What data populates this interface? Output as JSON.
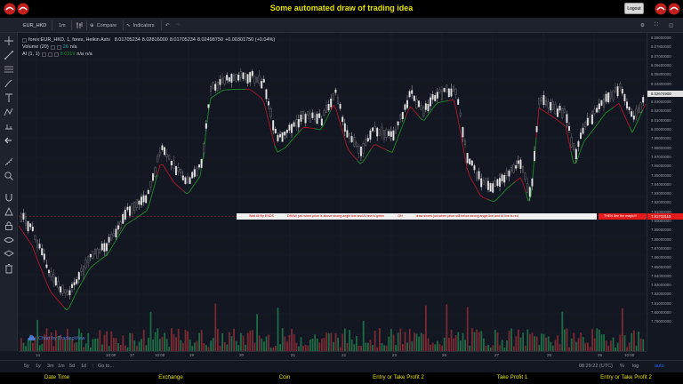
{
  "banner": {
    "title": "Some automated draw of trading idea",
    "logout_label": "Logout"
  },
  "toolbar": {
    "symbol": "EUR_HKD",
    "interval": "1m",
    "compare_label": "Compare",
    "indicators_label": "Indicators"
  },
  "legend": {
    "main_title": "forex:EUR_HKD, 1, forex, Heikin Ashi",
    "ohlc": [
      "8.01705234",
      "8.02816000",
      "8.01705234",
      "8.02498750",
      "+0.00301750 (+0.04%)"
    ],
    "volume_label": "Volume (20)",
    "volume_values": [
      "26",
      "n/a"
    ],
    "ai_label": "AI (1, 1)",
    "ai_values": [
      "8.0319",
      "n/a",
      "n/a"
    ]
  },
  "price_axis": {
    "labels": [
      "8.08000000",
      "8.07800000",
      "8.07000000",
      "8.06600000",
      "8.05800000",
      "8.04800000",
      "8.04000000",
      "8.03000000",
      "8.02000000",
      "8.01000000",
      "8.00000000",
      "7.99000000",
      "7.98000000",
      "7.97000000",
      "7.96000000",
      "7.95000000",
      "7.94000000",
      "7.93000000",
      "7.92000000",
      "7.91000000",
      "7.90000000",
      "7.89000000",
      "7.88000000",
      "7.87000000",
      "7.86000000",
      "7.85000000",
      "7.84000000",
      "7.83000000",
      "7.82000000",
      "7.81000000",
      "7.80000000",
      "7.79000000"
    ],
    "current_price": "8.02674900",
    "signal_price": "7.91733119",
    "current_color": "#e0e0e0",
    "signal_color": "#e61c1c"
  },
  "time_axis": {
    "labels": [
      "14",
      "10:00",
      "17",
      "10:00",
      "19",
      "20",
      "21",
      "22",
      "23",
      "26",
      "27",
      "28",
      "29",
      "10:00"
    ]
  },
  "idea": {
    "strip_texts": [
      "Wait till flip ENDS",
      "DRAW just when price is above strong angle line and AI line is green",
      "ON",
      "draw shorts just when price still below strong angle line and AI line is red"
    ],
    "tag_text": "THEN See the magic!!!"
  },
  "watermark": "Chart by TradingView",
  "bottom_bar": {
    "ranges": [
      "5y",
      "1y",
      "3m",
      "1m",
      "5d",
      "1d",
      "Go to..."
    ],
    "clock": "08:29:22 (UTC)",
    "scale_options": [
      "%",
      "log",
      "auto"
    ]
  },
  "footer_nav": {
    "items": [
      "Date Time",
      "Exchange",
      "Coin",
      "Entry or Take Profit 2",
      "Take Profit 1",
      "Entry or Take Profit 2"
    ]
  },
  "icons": {
    "left_tools": [
      "crosshair-icon",
      "trend-line-icon",
      "fib-icon",
      "brush-icon",
      "text-icon",
      "pattern-icon",
      "prediction-icon",
      "back-icon",
      "measure-icon",
      "zoom-icon",
      "magnet-icon",
      "stay-drawing-icon",
      "lock-icon",
      "hide-icon",
      "trash-icon"
    ]
  },
  "colors": {
    "bg": "#131722",
    "banner_text": "#e8e200",
    "candle_up": "#e0e0e0",
    "candle_down": "#8c8c8c",
    "ai_green": "#1f8b2c",
    "ai_red": "#b0172a",
    "vol_up": "#1e6b45",
    "vol_down": "#7b2a33"
  }
}
